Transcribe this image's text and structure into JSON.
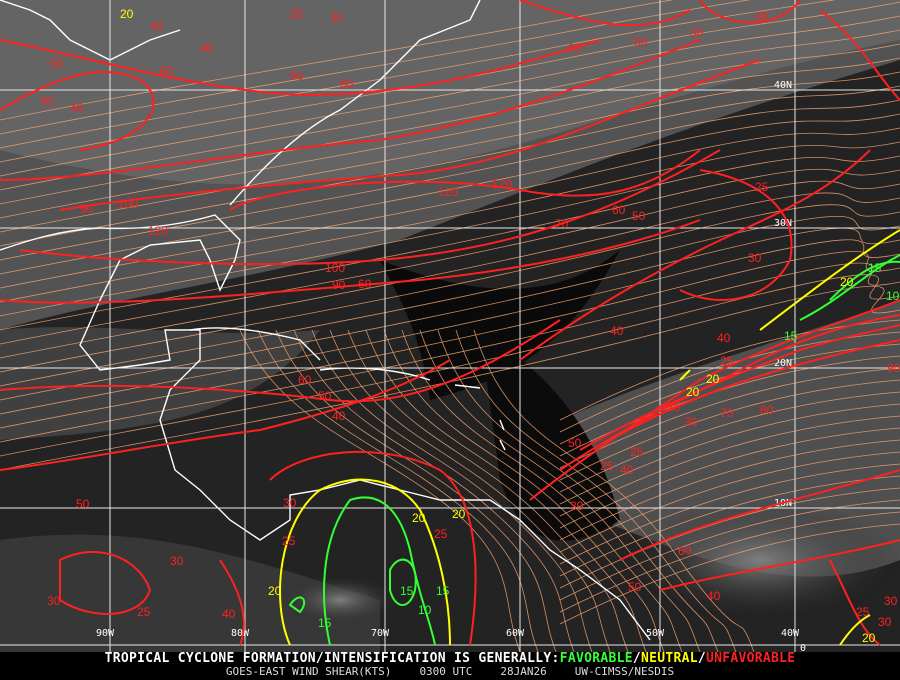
{
  "colors": {
    "favorable": "#33ff33",
    "neutral": "#ffff00",
    "unfavorable": "#ff2020",
    "streamline": "#f4a470",
    "coast": "#ffffff",
    "grid": "#e8e8e8"
  },
  "grid_labels": {
    "lon": [
      "90W",
      "80W",
      "70W",
      "60W",
      "50W",
      "40W"
    ],
    "lat": [
      "40N",
      "30N",
      "20N",
      "10N",
      "0"
    ]
  },
  "contour_labels": [
    {
      "v": "20",
      "c": "neutral"
    },
    {
      "v": "40",
      "c": "unfavorable"
    },
    {
      "v": "25",
      "c": "unfavorable"
    },
    {
      "v": "30",
      "c": "unfavorable"
    },
    {
      "v": "40",
      "c": "unfavorable"
    },
    {
      "v": "50",
      "c": "unfavorable"
    },
    {
      "v": "60",
      "c": "unfavorable"
    },
    {
      "v": "50",
      "c": "unfavorable"
    },
    {
      "v": "30",
      "c": "unfavorable"
    },
    {
      "v": "40",
      "c": "unfavorable"
    },
    {
      "v": "60",
      "c": "unfavorable"
    },
    {
      "v": "50",
      "c": "unfavorable"
    },
    {
      "v": "30",
      "c": "unfavorable"
    },
    {
      "v": "40",
      "c": "unfavorable"
    },
    {
      "v": "60",
      "c": "unfavorable"
    },
    {
      "v": "90",
      "c": "unfavorable"
    },
    {
      "v": "100",
      "c": "unfavorable"
    },
    {
      "v": "120",
      "c": "unfavorable"
    },
    {
      "v": "120",
      "c": "unfavorable"
    },
    {
      "v": "120",
      "c": "unfavorable"
    },
    {
      "v": "70",
      "c": "unfavorable"
    },
    {
      "v": "60",
      "c": "unfavorable"
    },
    {
      "v": "50",
      "c": "unfavorable"
    },
    {
      "v": "100",
      "c": "unfavorable"
    },
    {
      "v": "90",
      "c": "unfavorable"
    },
    {
      "v": "60",
      "c": "unfavorable"
    },
    {
      "v": "25",
      "c": "unfavorable"
    },
    {
      "v": "30",
      "c": "unfavorable"
    },
    {
      "v": "20",
      "c": "neutral"
    },
    {
      "v": "15",
      "c": "favorable"
    },
    {
      "v": "10",
      "c": "favorable"
    },
    {
      "v": "15",
      "c": "favorable"
    },
    {
      "v": "40",
      "c": "unfavorable"
    },
    {
      "v": "40",
      "c": "unfavorable"
    },
    {
      "v": "25",
      "c": "unfavorable"
    },
    {
      "v": "20",
      "c": "neutral"
    },
    {
      "v": "20",
      "c": "neutral"
    },
    {
      "v": "25",
      "c": "unfavorable"
    },
    {
      "v": "30",
      "c": "unfavorable"
    },
    {
      "v": "70",
      "c": "unfavorable"
    },
    {
      "v": "60",
      "c": "unfavorable"
    },
    {
      "v": "90",
      "c": "unfavorable"
    },
    {
      "v": "60",
      "c": "unfavorable"
    },
    {
      "v": "50",
      "c": "unfavorable"
    },
    {
      "v": "40",
      "c": "unfavorable"
    },
    {
      "v": "50",
      "c": "unfavorable"
    },
    {
      "v": "25",
      "c": "unfavorable"
    },
    {
      "v": "25",
      "c": "unfavorable"
    },
    {
      "v": "40",
      "c": "unfavorable"
    },
    {
      "v": "30",
      "c": "unfavorable"
    },
    {
      "v": "30",
      "c": "unfavorable"
    },
    {
      "v": "25",
      "c": "unfavorable"
    },
    {
      "v": "20",
      "c": "neutral"
    },
    {
      "v": "20",
      "c": "neutral"
    },
    {
      "v": "15",
      "c": "favorable"
    },
    {
      "v": "10",
      "c": "favorable"
    },
    {
      "v": "15",
      "c": "favorable"
    },
    {
      "v": "25",
      "c": "unfavorable"
    },
    {
      "v": "30",
      "c": "unfavorable"
    },
    {
      "v": "20",
      "c": "neutral"
    },
    {
      "v": "15",
      "c": "favorable"
    },
    {
      "v": "40",
      "c": "unfavorable"
    },
    {
      "v": "30",
      "c": "unfavorable"
    },
    {
      "v": "25",
      "c": "unfavorable"
    },
    {
      "v": "30",
      "c": "unfavorable"
    },
    {
      "v": "50",
      "c": "unfavorable"
    },
    {
      "v": "60",
      "c": "unfavorable"
    },
    {
      "v": "50",
      "c": "unfavorable"
    },
    {
      "v": "40",
      "c": "unfavorable"
    },
    {
      "v": "30",
      "c": "unfavorable"
    },
    {
      "v": "25",
      "c": "unfavorable"
    },
    {
      "v": "20",
      "c": "neutral"
    }
  ],
  "banner": {
    "prefix": "TROPICAL CYCLONE FORMATION/INTENSIFICATION IS GENERALLY:",
    "favorable": "FAVORABLE",
    "sep1": "/",
    "neutral": "NEUTRAL",
    "sep2": "/",
    "unfavorable": "UNFAVORABLE",
    "product": "GOES-EAST WIND SHEAR(KTS)",
    "time": "0300 UTC",
    "date": "28JAN26",
    "source": "UW-CIMSS/NESDIS"
  }
}
